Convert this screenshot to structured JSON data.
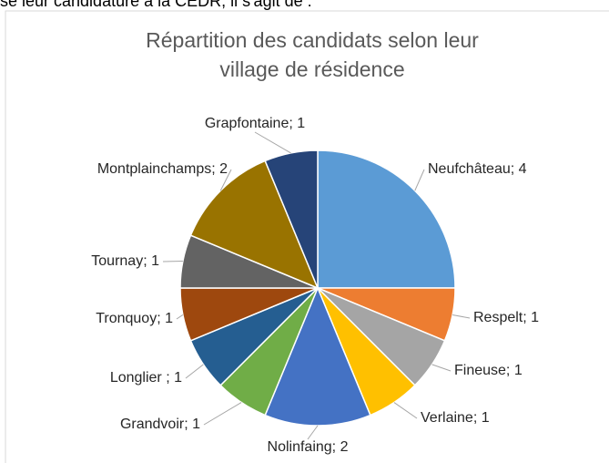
{
  "intro_text": "se leur candidature à la CEDR, il s'agit de :",
  "chart_data": {
    "type": "pie",
    "title": [
      "Répartition des candidats selon leur",
      "village de résidence"
    ],
    "values": [
      4,
      1,
      1,
      1,
      2,
      1,
      1,
      1,
      1,
      2,
      1
    ],
    "value_labels": [
      "Neufchâteau; 4",
      "Respelt; 1",
      "Fineuse; 1",
      "Verlaine; 1",
      "Nolinfaing; 2",
      "Grandvoir; 1",
      "Longlier ; 1",
      "Tronquoy; 1",
      "Tournay; 1",
      "Montplainchamps; 2",
      "Grapfontaine; 1"
    ],
    "colors": [
      "#5b9bd5",
      "#ed7d31",
      "#a5a5a5",
      "#ffc000",
      "#4472c4",
      "#70ad47",
      "#255e91",
      "#9e480e",
      "#636363",
      "#997300",
      "#264478"
    ]
  }
}
